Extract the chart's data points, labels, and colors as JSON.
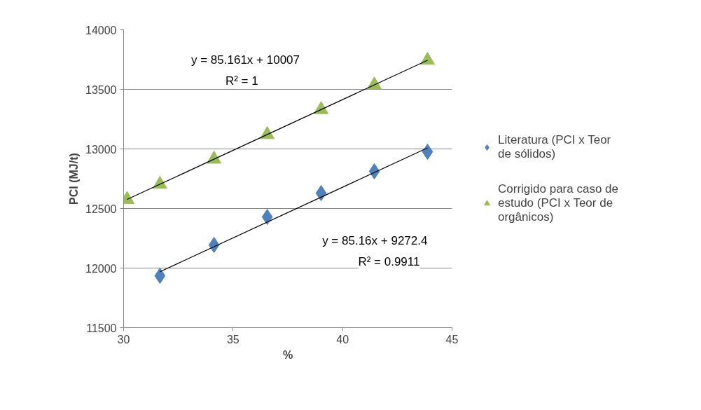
{
  "chart_data": {
    "type": "scatter",
    "xlabel": "%",
    "ylabel": "PCI (MJ/t)",
    "xlim": [
      30,
      45
    ],
    "xticks": [
      30,
      35,
      40,
      45
    ],
    "ylim": [
      11500,
      14000
    ],
    "yticks": [
      11500,
      12000,
      12500,
      13000,
      13500,
      14000
    ],
    "grid": "y",
    "legend": "right",
    "series": [
      {
        "name": "Literatura (PCI x Teor de sólidos)",
        "color": "#4f81bd",
        "marker": "diamond",
        "x": [
          31.66,
          34.13,
          36.56,
          39.02,
          41.45,
          43.88
        ],
        "values": [
          11935,
          12194,
          12429,
          12629,
          12812,
          12976
        ]
      },
      {
        "name": "Corrigido para caso de estudo (PCI x Teor de orgânicos)",
        "color": "#9bbb59",
        "marker": "triangle",
        "x": [
          30.16,
          31.66,
          34.13,
          36.56,
          39.02,
          41.45,
          43.88
        ],
        "values": [
          12576,
          12703,
          12914,
          13120,
          13330,
          13537,
          13744
        ]
      },
      {
        "type": "line",
        "color": "#000000",
        "x": [
          31.66,
          43.88
        ],
        "values": [
          11969,
          13009
        ]
      },
      {
        "type": "line",
        "color": "#000000",
        "x": [
          30.16,
          43.88
        ],
        "values": [
          12576,
          13744
        ]
      }
    ],
    "annotations": [
      "y = 85.161x + 10007",
      "R² = 1",
      "y = 85.16x + 9272.4",
      "R² = 0.9911"
    ]
  }
}
